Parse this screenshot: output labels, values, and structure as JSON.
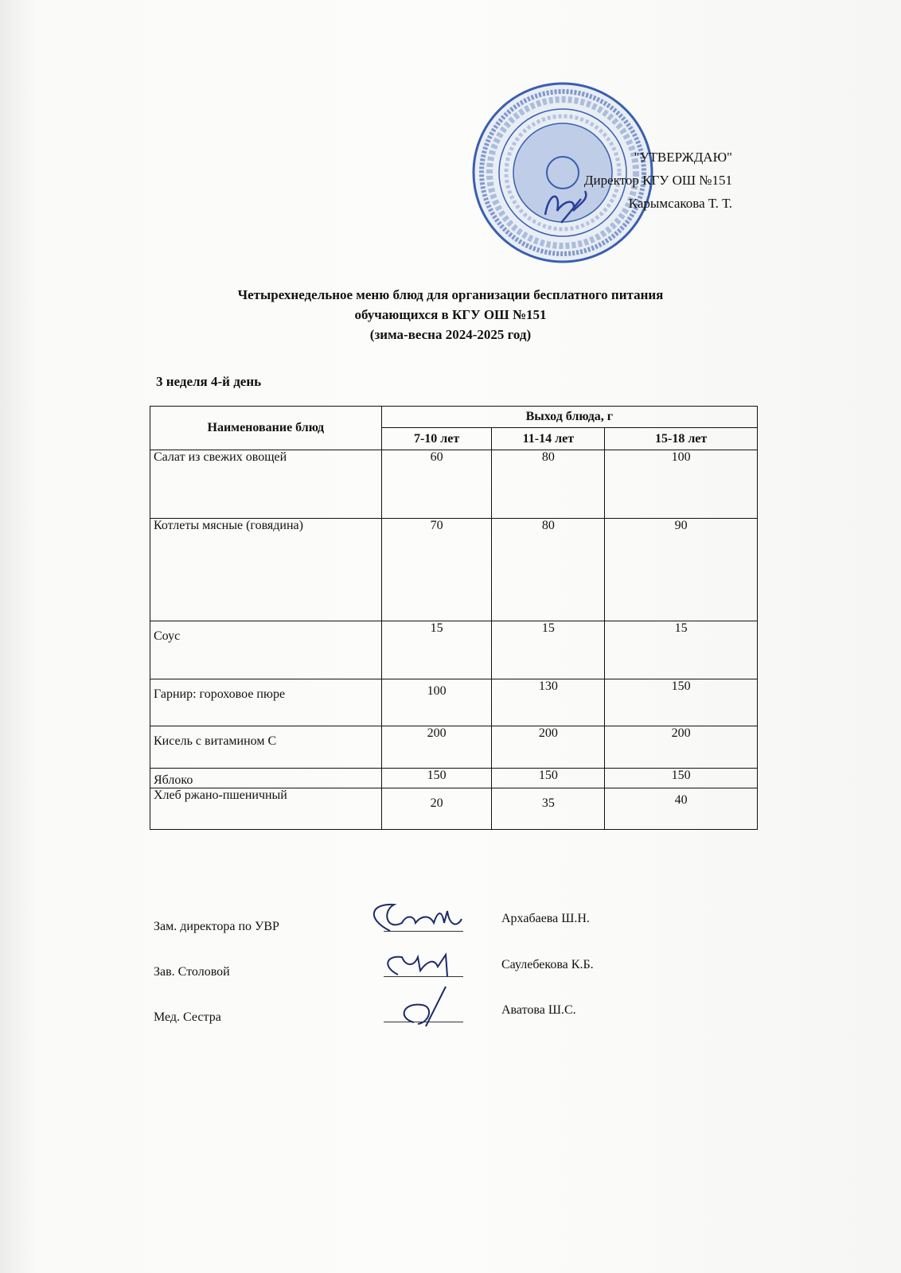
{
  "approval": {
    "heading": "\"УТВЕРЖДАЮ\"",
    "position": "Директор КГУ ОШ №151",
    "name": "Карымсакова Т. Т.",
    "stamp_text": "ҚАЗАҚСТАН РЕСПУБЛИКАСЫ «АЛМАТЫ ҚАЛАСЫ БІЛІМ БАСҚАРМАСЫНЫҢ №151 ЖАЛПЫ БІЛІМ БЕРЕТІН МЕКТЕП» КОММУНАЛДЫҚ МЕМЛЕКЕТТІК МЕКЕМЕСІ БСН/БИН 981140000879",
    "stamp_color": "#3a5fb0"
  },
  "title": {
    "line1": "Четырехнедельное меню блюд для организации бесплатного питания",
    "line2": "обучающихся в КГУ ОШ №151",
    "line3": "(зима-весна 2024-2025 год)"
  },
  "week_day": "3 неделя 4-й день",
  "table": {
    "header_name": "Наименование блюд",
    "header_yield": "Выход блюда, г",
    "age_groups": [
      "7-10 лет",
      "11-14 лет",
      "15-18 лет"
    ],
    "rows": [
      {
        "name": "Салат из свежих овощей",
        "values": [
          "60",
          "80",
          "100"
        ]
      },
      {
        "name": "Котлеты мясные (говядина)",
        "values": [
          "70",
          "80",
          "90"
        ]
      },
      {
        "name": "Соус",
        "values": [
          "15",
          "15",
          "15"
        ]
      },
      {
        "name": "Гарнир: гороховое пюре",
        "values": [
          "100",
          "130",
          "150"
        ]
      },
      {
        "name": "Кисель с витамином С",
        "values": [
          "200",
          "200",
          "200"
        ]
      },
      {
        "name": "Яблоко",
        "values": [
          "150",
          "150",
          "150"
        ]
      },
      {
        "name": "Хлеб ржано-пшеничный",
        "values": [
          "20",
          "35",
          "40"
        ]
      }
    ]
  },
  "signatures": [
    {
      "role": "Зам. директора по УВР",
      "name": "Архабаева Ш.Н."
    },
    {
      "role": "Зав. Столовой",
      "name": "Саулебекова К.Б."
    },
    {
      "role": "Мед. Сестра",
      "name": "Аватова Ш.С."
    }
  ]
}
